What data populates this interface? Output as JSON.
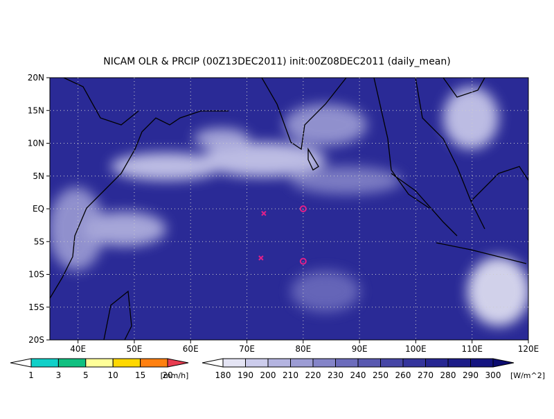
{
  "map": {
    "title": "NICAM OLR & PRCIP (00Z13DEC2011) init:00Z08DEC2011 (daily_mean)",
    "lonlim": [
      35,
      120
    ],
    "latlim": [
      -20,
      20
    ],
    "lon_ticks": [
      {
        "value": 40,
        "label": "40E"
      },
      {
        "value": 50,
        "label": "50E"
      },
      {
        "value": 60,
        "label": "60E"
      },
      {
        "value": 70,
        "label": "70E"
      },
      {
        "value": 80,
        "label": "80E"
      },
      {
        "value": 90,
        "label": "90E"
      },
      {
        "value": 100,
        "label": "100E"
      },
      {
        "value": 110,
        "label": "110E"
      },
      {
        "value": 120,
        "label": "120E"
      }
    ],
    "lat_ticks": [
      {
        "value": -20,
        "label": "20S"
      },
      {
        "value": -15,
        "label": "15S"
      },
      {
        "value": -10,
        "label": "10S"
      },
      {
        "value": -5,
        "label": "5S"
      },
      {
        "value": 0,
        "label": "EQ"
      },
      {
        "value": 5,
        "label": "5N"
      },
      {
        "value": 10,
        "label": "10N"
      },
      {
        "value": 15,
        "label": "15N"
      },
      {
        "value": 20,
        "label": "20N"
      }
    ],
    "grid": true,
    "markers": [
      {
        "shape": "x",
        "color": "#e0208a",
        "lon": 73,
        "lat": -0.7
      },
      {
        "shape": "o",
        "color": "#e0208a",
        "lon": 80,
        "lat": 0
      },
      {
        "shape": "x",
        "color": "#e0208a",
        "lon": 72.5,
        "lat": -7.5
      },
      {
        "shape": "o",
        "color": "#e0208a",
        "lon": 80,
        "lat": -8
      }
    ],
    "precip_colorbar": {
      "levels": [
        1,
        3,
        5,
        10,
        15,
        20
      ],
      "unit": "[mm/h]",
      "colors": [
        "#ffffff",
        "#10d0c8",
        "#10c080",
        "#ffff99",
        "#ffd800",
        "#ff8010",
        "#e83c50"
      ]
    },
    "olr_colorbar": {
      "levels": [
        180,
        190,
        200,
        210,
        220,
        230,
        240,
        250,
        260,
        270,
        280,
        290,
        300
      ],
      "unit": "[W/m^2]",
      "colors": [
        "#ffffff",
        "#e4e4f4",
        "#ccccec",
        "#b4b4e0",
        "#9c9cd4",
        "#8484c8",
        "#6c6cbc",
        "#5858b0",
        "#4646a6",
        "#34349c",
        "#262692",
        "#1c1c88",
        "#141480",
        "#0c0c70"
      ]
    }
  }
}
